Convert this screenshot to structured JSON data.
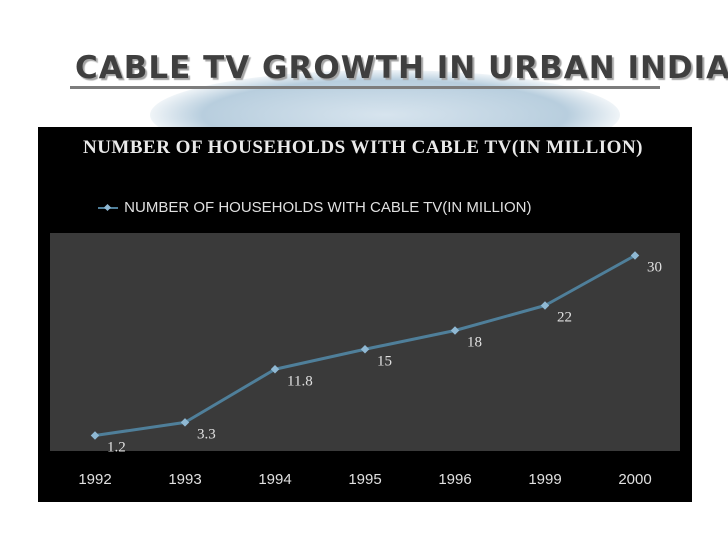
{
  "slide": {
    "title": "CABLE TV GROWTH IN URBAN INDIA"
  },
  "chart_data": {
    "type": "line",
    "title": "NUMBER OF HOUSEHOLDS WITH CABLE TV(IN MILLION)",
    "categories": [
      "1992",
      "1993",
      "1994",
      "1995",
      "1996",
      "1999",
      "2000"
    ],
    "series": [
      {
        "name": "NUMBER OF HOUSEHOLDS WITH CABLE TV(IN MILLION)",
        "values": [
          1.2,
          3.3,
          11.8,
          15,
          18,
          22,
          30
        ],
        "labels": [
          "1.2",
          "3.3",
          "11.8",
          "15",
          "18",
          "22",
          "30"
        ],
        "color": "#4f7f9a",
        "marker_color": "#8fb8d3"
      }
    ],
    "legend_position": "top",
    "ylim": [
      0,
      32
    ],
    "grid": false,
    "xlabel": "",
    "ylabel": "",
    "colors": {
      "panel_background": "#000000",
      "plot_background": "#3a3a3a",
      "text": "#e0e0e0"
    }
  }
}
